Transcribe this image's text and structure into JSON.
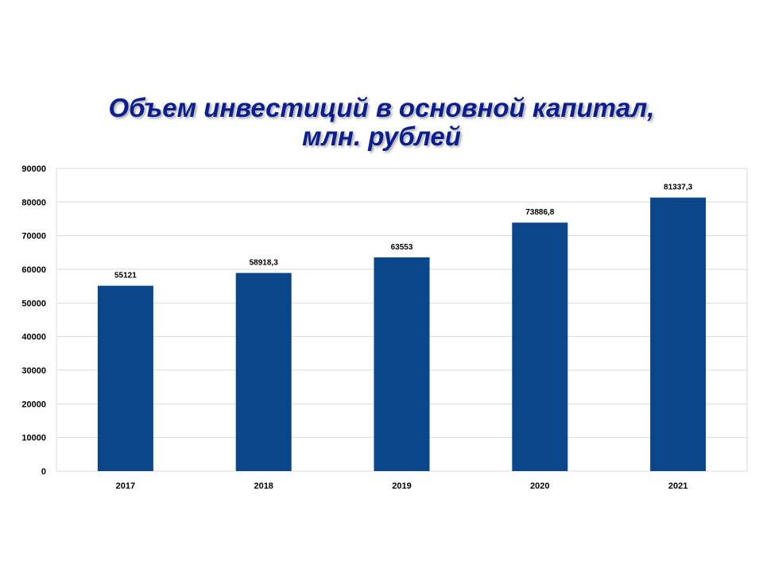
{
  "title": {
    "line1": "Объем инвестиций в основной капитал,",
    "line2": "млн. рублей"
  },
  "colors": {
    "bar": "#0a4689",
    "title": "#0b1e8f",
    "grid": "#d9d9d9",
    "plot_border": "#d9d9d9"
  },
  "chart_data": {
    "type": "bar",
    "title": "Объем инвестиций в основной капитал, млн. рублей",
    "categories": [
      "2017",
      "2018",
      "2019",
      "2020",
      "2021"
    ],
    "values": [
      55121,
      58918.3,
      63553,
      73886.8,
      81337.3
    ],
    "value_labels": [
      "55121",
      "58918,3",
      "63553",
      "73886,8",
      "81337,3"
    ],
    "xlabel": "",
    "ylabel": "",
    "ylim": [
      0,
      90000
    ],
    "yticks": [
      0,
      10000,
      20000,
      30000,
      40000,
      50000,
      60000,
      70000,
      80000,
      90000
    ],
    "ytick_labels": [
      "0",
      "10000",
      "20000",
      "30000",
      "40000",
      "50000",
      "60000",
      "70000",
      "80000",
      "90000"
    ],
    "grid": true,
    "legend": false
  }
}
